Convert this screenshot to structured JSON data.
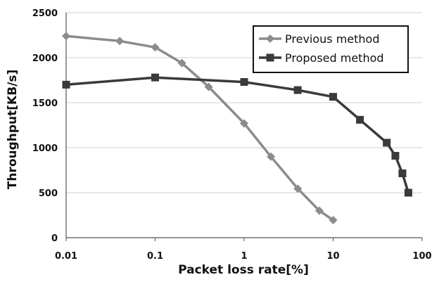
{
  "chart_data": {
    "type": "line",
    "xlabel": "Packet loss rate[%]",
    "ylabel": "Throughput[KB/s]",
    "xscale": "log",
    "xlim": [
      0.01,
      100
    ],
    "ylim": [
      0,
      2500
    ],
    "x_ticks": [
      0.01,
      0.1,
      1,
      10,
      100
    ],
    "x_tick_labels": [
      "0.01",
      "0.1",
      "1",
      "10",
      "100"
    ],
    "y_ticks": [
      0,
      500,
      1000,
      1500,
      2000,
      2500
    ],
    "y_tick_labels": [
      "0",
      "500",
      "1000",
      "1500",
      "2000",
      "2500"
    ],
    "grid": "horizontal",
    "legend_position": "top-right",
    "series": [
      {
        "name": "Previous method",
        "marker": "diamond",
        "color": "#8c8c8c",
        "x": [
          0.01,
          0.04,
          0.1,
          0.2,
          0.4,
          1,
          2,
          4,
          7,
          10
        ],
        "y": [
          2240,
          2185,
          2115,
          1940,
          1675,
          1270,
          900,
          545,
          300,
          195
        ]
      },
      {
        "name": "Proposed method",
        "marker": "square",
        "color": "#3a3a3a",
        "x": [
          0.01,
          0.1,
          1,
          4,
          10,
          20,
          40,
          50,
          60,
          70
        ],
        "y": [
          1700,
          1780,
          1730,
          1640,
          1565,
          1310,
          1055,
          910,
          715,
          500
        ]
      }
    ]
  }
}
